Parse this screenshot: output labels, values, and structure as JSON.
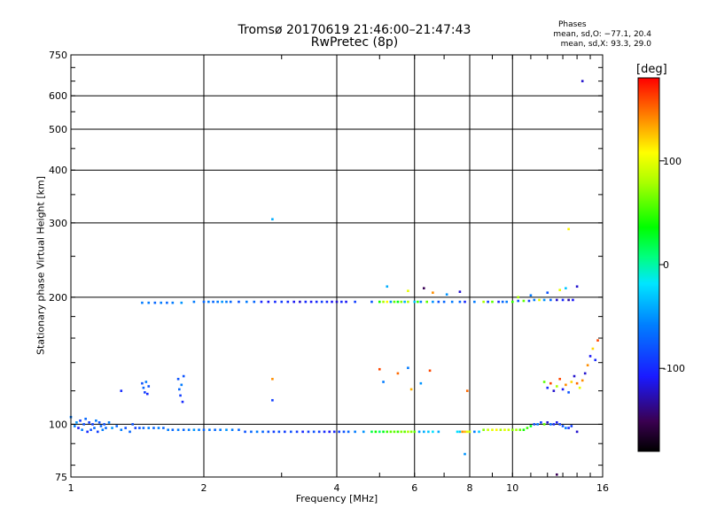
{
  "chart_data": {
    "type": "scatter",
    "title": "Tromsø 20170619 21:46:00–21:47:43",
    "subtitle": "RwPretec (8p)",
    "xlabel": "Frequency [MHz]",
    "ylabel": "Stationary phase Virtual Height [km]",
    "x_scale": "log",
    "y_scale": "log",
    "xlim": [
      1,
      16
    ],
    "ylim": [
      75,
      750
    ],
    "x_ticks": [
      1,
      2,
      4,
      6,
      8,
      10,
      16
    ],
    "x_tick_labels": [
      "1",
      "2",
      "4",
      "6",
      "8",
      "10",
      "16"
    ],
    "y_ticks": [
      75,
      100,
      200,
      300,
      400,
      500,
      600,
      750
    ],
    "y_tick_labels": [
      "75",
      "100",
      "200",
      "300",
      "400",
      "500",
      "600",
      "750"
    ],
    "grid": true,
    "legend": {
      "title": "Phases",
      "lines": [
        "mean, sd,O: −77.1, 20.4",
        "mean, sd,X:  93.3, 29.0"
      ]
    },
    "colorbar": {
      "label": "[deg]",
      "range": [
        -180,
        180
      ],
      "ticks": [
        100,
        0,
        -100
      ],
      "tick_labels": [
        "100",
        "0",
        "-100"
      ]
    },
    "points": [
      [
        1.0,
        104,
        -60
      ],
      [
        1.02,
        99,
        -60
      ],
      [
        1.03,
        101,
        -50
      ],
      [
        1.04,
        98,
        -110
      ],
      [
        1.05,
        102,
        -90
      ],
      [
        1.06,
        97,
        -60
      ],
      [
        1.07,
        100,
        -80
      ],
      [
        1.08,
        103,
        -70
      ],
      [
        1.09,
        96,
        -100
      ],
      [
        1.1,
        101,
        -90
      ],
      [
        1.11,
        97,
        -80
      ],
      [
        1.12,
        100,
        -90
      ],
      [
        1.13,
        98,
        -70
      ],
      [
        1.14,
        102,
        -60
      ],
      [
        1.15,
        96,
        -90
      ],
      [
        1.16,
        101,
        -80
      ],
      [
        1.17,
        99,
        -70
      ],
      [
        1.18,
        97,
        -60
      ],
      [
        1.19,
        100,
        -80
      ],
      [
        1.2,
        98,
        -70
      ],
      [
        1.22,
        101,
        -60
      ],
      [
        1.24,
        98,
        -50
      ],
      [
        1.27,
        99,
        -70
      ],
      [
        1.3,
        97,
        -60
      ],
      [
        1.33,
        98,
        -80
      ],
      [
        1.36,
        96,
        -70
      ],
      [
        1.38,
        100,
        -80
      ],
      [
        1.4,
        98,
        -90
      ],
      [
        1.43,
        98,
        -80
      ],
      [
        1.46,
        98,
        -70
      ],
      [
        1.5,
        98,
        -60
      ],
      [
        1.54,
        98,
        -70
      ],
      [
        1.58,
        98,
        -60
      ],
      [
        1.62,
        98,
        -70
      ],
      [
        1.66,
        97,
        -60
      ],
      [
        1.7,
        97,
        -70
      ],
      [
        1.75,
        97,
        -60
      ],
      [
        1.8,
        97,
        -70
      ],
      [
        1.85,
        97,
        -60
      ],
      [
        1.9,
        97,
        -50
      ],
      [
        1.95,
        97,
        -60
      ],
      [
        2.0,
        97,
        -70
      ],
      [
        2.06,
        97,
        -60
      ],
      [
        2.12,
        97,
        -70
      ],
      [
        2.18,
        97,
        -60
      ],
      [
        2.25,
        97,
        -50
      ],
      [
        2.32,
        97,
        -60
      ],
      [
        2.4,
        97,
        -70
      ],
      [
        2.48,
        96,
        -80
      ],
      [
        2.56,
        96,
        -70
      ],
      [
        2.64,
        96,
        -60
      ],
      [
        2.72,
        96,
        -70
      ],
      [
        2.8,
        96,
        -80
      ],
      [
        2.88,
        96,
        -90
      ],
      [
        2.96,
        96,
        -80
      ],
      [
        3.05,
        96,
        -90
      ],
      [
        3.15,
        96,
        -80
      ],
      [
        3.25,
        96,
        -90
      ],
      [
        3.35,
        96,
        -100
      ],
      [
        3.45,
        96,
        -90
      ],
      [
        3.55,
        96,
        -80
      ],
      [
        3.65,
        96,
        -90
      ],
      [
        3.75,
        96,
        -100
      ],
      [
        3.85,
        96,
        -110
      ],
      [
        3.95,
        96,
        -100
      ],
      [
        4.05,
        96,
        -90
      ],
      [
        4.15,
        96,
        -80
      ],
      [
        4.25,
        96,
        -70
      ],
      [
        4.4,
        96,
        -60
      ],
      [
        4.6,
        96,
        -50
      ],
      [
        4.8,
        96,
        20
      ],
      [
        4.9,
        96,
        40
      ],
      [
        5.0,
        96,
        10
      ],
      [
        5.1,
        96,
        30
      ],
      [
        5.2,
        96,
        50
      ],
      [
        5.3,
        96,
        60
      ],
      [
        5.4,
        96,
        60
      ],
      [
        5.5,
        96,
        50
      ],
      [
        5.6,
        96,
        70
      ],
      [
        5.7,
        96,
        60
      ],
      [
        5.8,
        96,
        80
      ],
      [
        5.9,
        96,
        70
      ],
      [
        6.0,
        96,
        60
      ],
      [
        6.15,
        96,
        -50
      ],
      [
        6.3,
        96,
        -40
      ],
      [
        6.45,
        96,
        -30
      ],
      [
        6.6,
        96,
        -20
      ],
      [
        6.8,
        96,
        -40
      ],
      [
        7.5,
        96,
        -20
      ],
      [
        7.6,
        96,
        -30
      ],
      [
        7.7,
        96,
        140
      ],
      [
        7.8,
        96,
        130
      ],
      [
        7.9,
        96,
        100
      ],
      [
        8.0,
        96,
        90
      ],
      [
        8.2,
        96,
        -60
      ],
      [
        8.4,
        96,
        -30
      ],
      [
        8.6,
        97,
        70
      ],
      [
        8.8,
        97,
        90
      ],
      [
        9.0,
        97,
        100
      ],
      [
        9.2,
        97,
        110
      ],
      [
        9.4,
        97,
        80
      ],
      [
        9.6,
        97,
        100
      ],
      [
        9.8,
        97,
        90
      ],
      [
        10.0,
        97,
        70
      ],
      [
        10.2,
        97,
        80
      ],
      [
        10.4,
        97,
        60
      ],
      [
        10.6,
        97,
        40
      ],
      [
        10.8,
        98,
        50
      ],
      [
        11.0,
        99,
        30
      ],
      [
        11.2,
        100,
        -80
      ],
      [
        11.4,
        100,
        -60
      ],
      [
        11.6,
        101,
        -90
      ],
      [
        11.8,
        100,
        60
      ],
      [
        12.0,
        101,
        -120
      ],
      [
        12.2,
        100,
        -70
      ],
      [
        12.4,
        100,
        -100
      ],
      [
        12.6,
        101,
        -110
      ],
      [
        12.8,
        100,
        -90
      ],
      [
        13.0,
        99,
        -80
      ],
      [
        13.2,
        98,
        -60
      ],
      [
        13.4,
        98,
        -100
      ],
      [
        13.6,
        99,
        -90
      ],
      [
        14.0,
        96,
        -120
      ],
      [
        1.45,
        194,
        -60
      ],
      [
        1.5,
        194,
        -60
      ],
      [
        1.55,
        194,
        -70
      ],
      [
        1.6,
        194,
        -60
      ],
      [
        1.65,
        194,
        -70
      ],
      [
        1.7,
        194,
        -60
      ],
      [
        1.78,
        194,
        -50
      ],
      [
        1.9,
        195,
        -60
      ],
      [
        2.0,
        195,
        -70
      ],
      [
        2.05,
        195,
        -60
      ],
      [
        2.1,
        195,
        -70
      ],
      [
        2.15,
        195,
        -60
      ],
      [
        2.2,
        195,
        -50
      ],
      [
        2.25,
        195,
        -60
      ],
      [
        2.3,
        195,
        -70
      ],
      [
        2.4,
        195,
        -80
      ],
      [
        2.5,
        195,
        -60
      ],
      [
        2.6,
        195,
        -70
      ],
      [
        2.7,
        195,
        -100
      ],
      [
        2.8,
        195,
        -110
      ],
      [
        2.9,
        195,
        -100
      ],
      [
        3.0,
        195,
        -90
      ],
      [
        3.1,
        195,
        -100
      ],
      [
        3.2,
        195,
        -110
      ],
      [
        3.3,
        195,
        -120
      ],
      [
        3.4,
        195,
        -100
      ],
      [
        3.5,
        195,
        -110
      ],
      [
        3.6,
        195,
        -100
      ],
      [
        3.7,
        195,
        -90
      ],
      [
        3.8,
        195,
        -100
      ],
      [
        3.9,
        195,
        -110
      ],
      [
        4.0,
        195,
        -120
      ],
      [
        4.1,
        195,
        -100
      ],
      [
        4.2,
        195,
        -110
      ],
      [
        4.4,
        195,
        -90
      ],
      [
        4.8,
        195,
        -80
      ],
      [
        5.0,
        195,
        40
      ],
      [
        5.1,
        195,
        80
      ],
      [
        5.2,
        195,
        110
      ],
      [
        5.3,
        195,
        -50
      ],
      [
        5.4,
        195,
        60
      ],
      [
        5.5,
        195,
        30
      ],
      [
        5.6,
        195,
        70
      ],
      [
        5.7,
        195,
        -40
      ],
      [
        5.8,
        195,
        80
      ],
      [
        6.0,
        195,
        -30
      ],
      [
        6.1,
        195,
        50
      ],
      [
        6.2,
        195,
        -60
      ],
      [
        6.4,
        195,
        60
      ],
      [
        6.6,
        195,
        -50
      ],
      [
        6.8,
        195,
        -80
      ],
      [
        7.0,
        195,
        -70
      ],
      [
        7.3,
        195,
        -60
      ],
      [
        7.6,
        195,
        -70
      ],
      [
        7.8,
        195,
        -100
      ],
      [
        8.2,
        195,
        -60
      ],
      [
        8.6,
        195,
        80
      ],
      [
        8.8,
        195,
        -90
      ],
      [
        9.0,
        195,
        60
      ],
      [
        9.3,
        195,
        -100
      ],
      [
        9.5,
        195,
        -70
      ],
      [
        9.7,
        195,
        -60
      ],
      [
        10.0,
        195,
        50
      ],
      [
        10.3,
        196,
        -80
      ],
      [
        10.6,
        196,
        60
      ],
      [
        10.9,
        196,
        -90
      ],
      [
        11.2,
        197,
        -60
      ],
      [
        11.5,
        197,
        100
      ],
      [
        11.8,
        197,
        -50
      ],
      [
        12.2,
        197,
        -70
      ],
      [
        12.6,
        197,
        -120
      ],
      [
        13.0,
        197,
        -100
      ],
      [
        13.4,
        197,
        -130
      ],
      [
        13.7,
        197,
        -110
      ],
      [
        5.2,
        212,
        -40
      ],
      [
        5.8,
        207,
        100
      ],
      [
        6.3,
        210,
        -150
      ],
      [
        6.6,
        205,
        140
      ],
      [
        7.1,
        203,
        -50
      ],
      [
        7.6,
        206,
        -120
      ],
      [
        10.3,
        200,
        80
      ],
      [
        11.0,
        202,
        -60
      ],
      [
        12.0,
        205,
        -80
      ],
      [
        12.8,
        208,
        100
      ],
      [
        13.2,
        210,
        -30
      ],
      [
        14.0,
        212,
        -120
      ],
      [
        1.3,
        120,
        -100
      ],
      [
        1.45,
        125,
        -80
      ],
      [
        1.46,
        122,
        -70
      ],
      [
        1.47,
        119,
        -90
      ],
      [
        1.48,
        126,
        -60
      ],
      [
        1.49,
        118,
        -100
      ],
      [
        1.5,
        123,
        -80
      ],
      [
        1.75,
        128,
        -80
      ],
      [
        1.76,
        121,
        -70
      ],
      [
        1.77,
        117,
        -90
      ],
      [
        1.78,
        124,
        -60
      ],
      [
        1.79,
        113,
        -100
      ],
      [
        1.8,
        130,
        -80
      ],
      [
        2.86,
        114,
        -90
      ],
      [
        2.86,
        128,
        140
      ],
      [
        5.0,
        135,
        160
      ],
      [
        5.1,
        126,
        -60
      ],
      [
        5.5,
        132,
        150
      ],
      [
        5.8,
        136,
        -60
      ],
      [
        5.9,
        121,
        130
      ],
      [
        6.2,
        125,
        -50
      ],
      [
        6.5,
        134,
        160
      ],
      [
        7.9,
        120,
        150
      ],
      [
        11.8,
        126,
        60
      ],
      [
        12.0,
        122,
        -100
      ],
      [
        12.2,
        125,
        160
      ],
      [
        12.4,
        120,
        -120
      ],
      [
        12.6,
        123,
        80
      ],
      [
        12.8,
        128,
        160
      ],
      [
        13.0,
        121,
        -110
      ],
      [
        13.2,
        124,
        140
      ],
      [
        13.4,
        119,
        -80
      ],
      [
        13.6,
        126,
        120
      ],
      [
        13.8,
        130,
        -120
      ],
      [
        14.0,
        125,
        150
      ],
      [
        14.2,
        122,
        100
      ],
      [
        14.4,
        127,
        140
      ],
      [
        14.6,
        132,
        -120
      ],
      [
        14.8,
        138,
        140
      ],
      [
        15.0,
        145,
        -110
      ],
      [
        15.2,
        151,
        120
      ],
      [
        15.4,
        142,
        -100
      ],
      [
        15.6,
        158,
        160
      ],
      [
        2.86,
        306,
        -40
      ],
      [
        13.4,
        290,
        110
      ],
      [
        14.4,
        650,
        -120
      ],
      [
        7.8,
        85,
        -50
      ],
      [
        12.6,
        76,
        -150
      ]
    ]
  }
}
